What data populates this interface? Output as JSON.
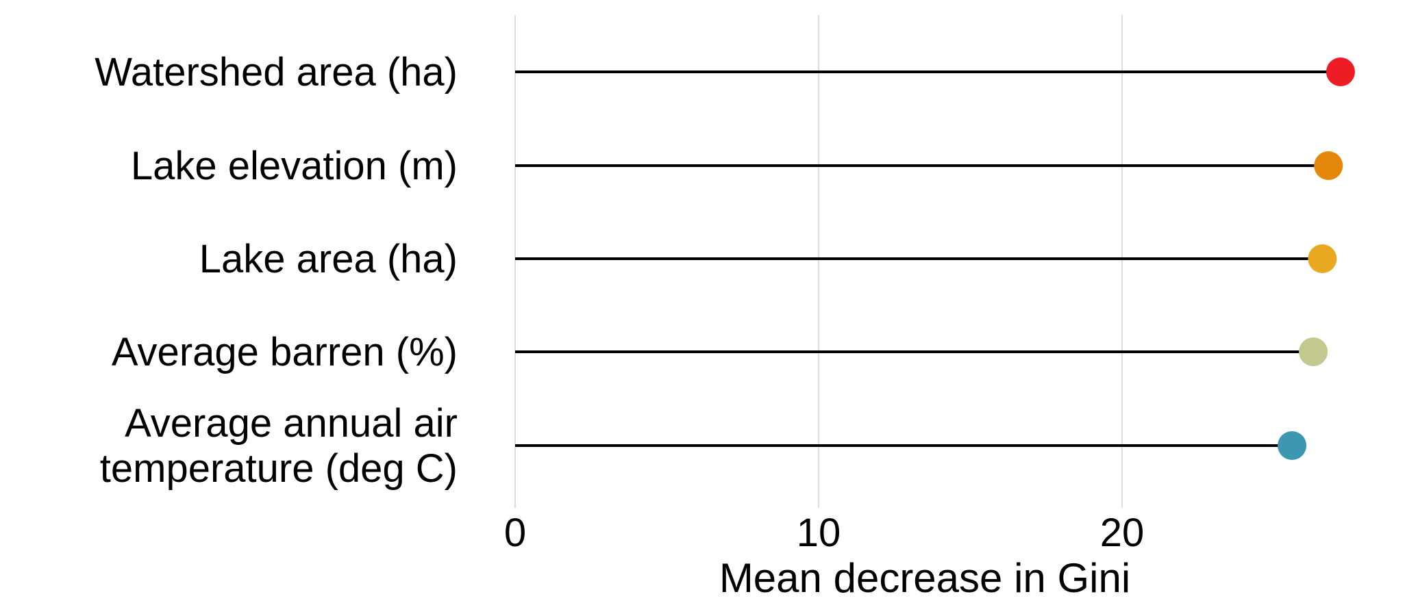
{
  "chart_data": {
    "type": "lollipop",
    "orientation": "horizontal",
    "xlabel": "Mean decrease in Gini",
    "ylabel": "",
    "xlim": [
      0,
      28
    ],
    "xticks": [
      0,
      10,
      20
    ],
    "xtick_labels": [
      "0",
      "10",
      "20"
    ],
    "grid": "vertical",
    "categories": [
      "Watershed area (ha)",
      "Lake elevation (m)",
      "Lake area (ha)",
      "Average barren (%)",
      "Average annual air temperature (deg C)"
    ],
    "category_lines": [
      [
        "Watershed area (ha)"
      ],
      [
        "Lake elevation (m)"
      ],
      [
        "Lake area (ha)"
      ],
      [
        "Average barren (%)"
      ],
      [
        "Average annual air",
        "temperature (deg C)"
      ]
    ],
    "values": [
      27.2,
      26.8,
      26.6,
      26.3,
      25.6
    ],
    "colors": [
      "#ee1c25",
      "#e5870a",
      "#e8a820",
      "#c1c98e",
      "#3d97b0"
    ]
  }
}
